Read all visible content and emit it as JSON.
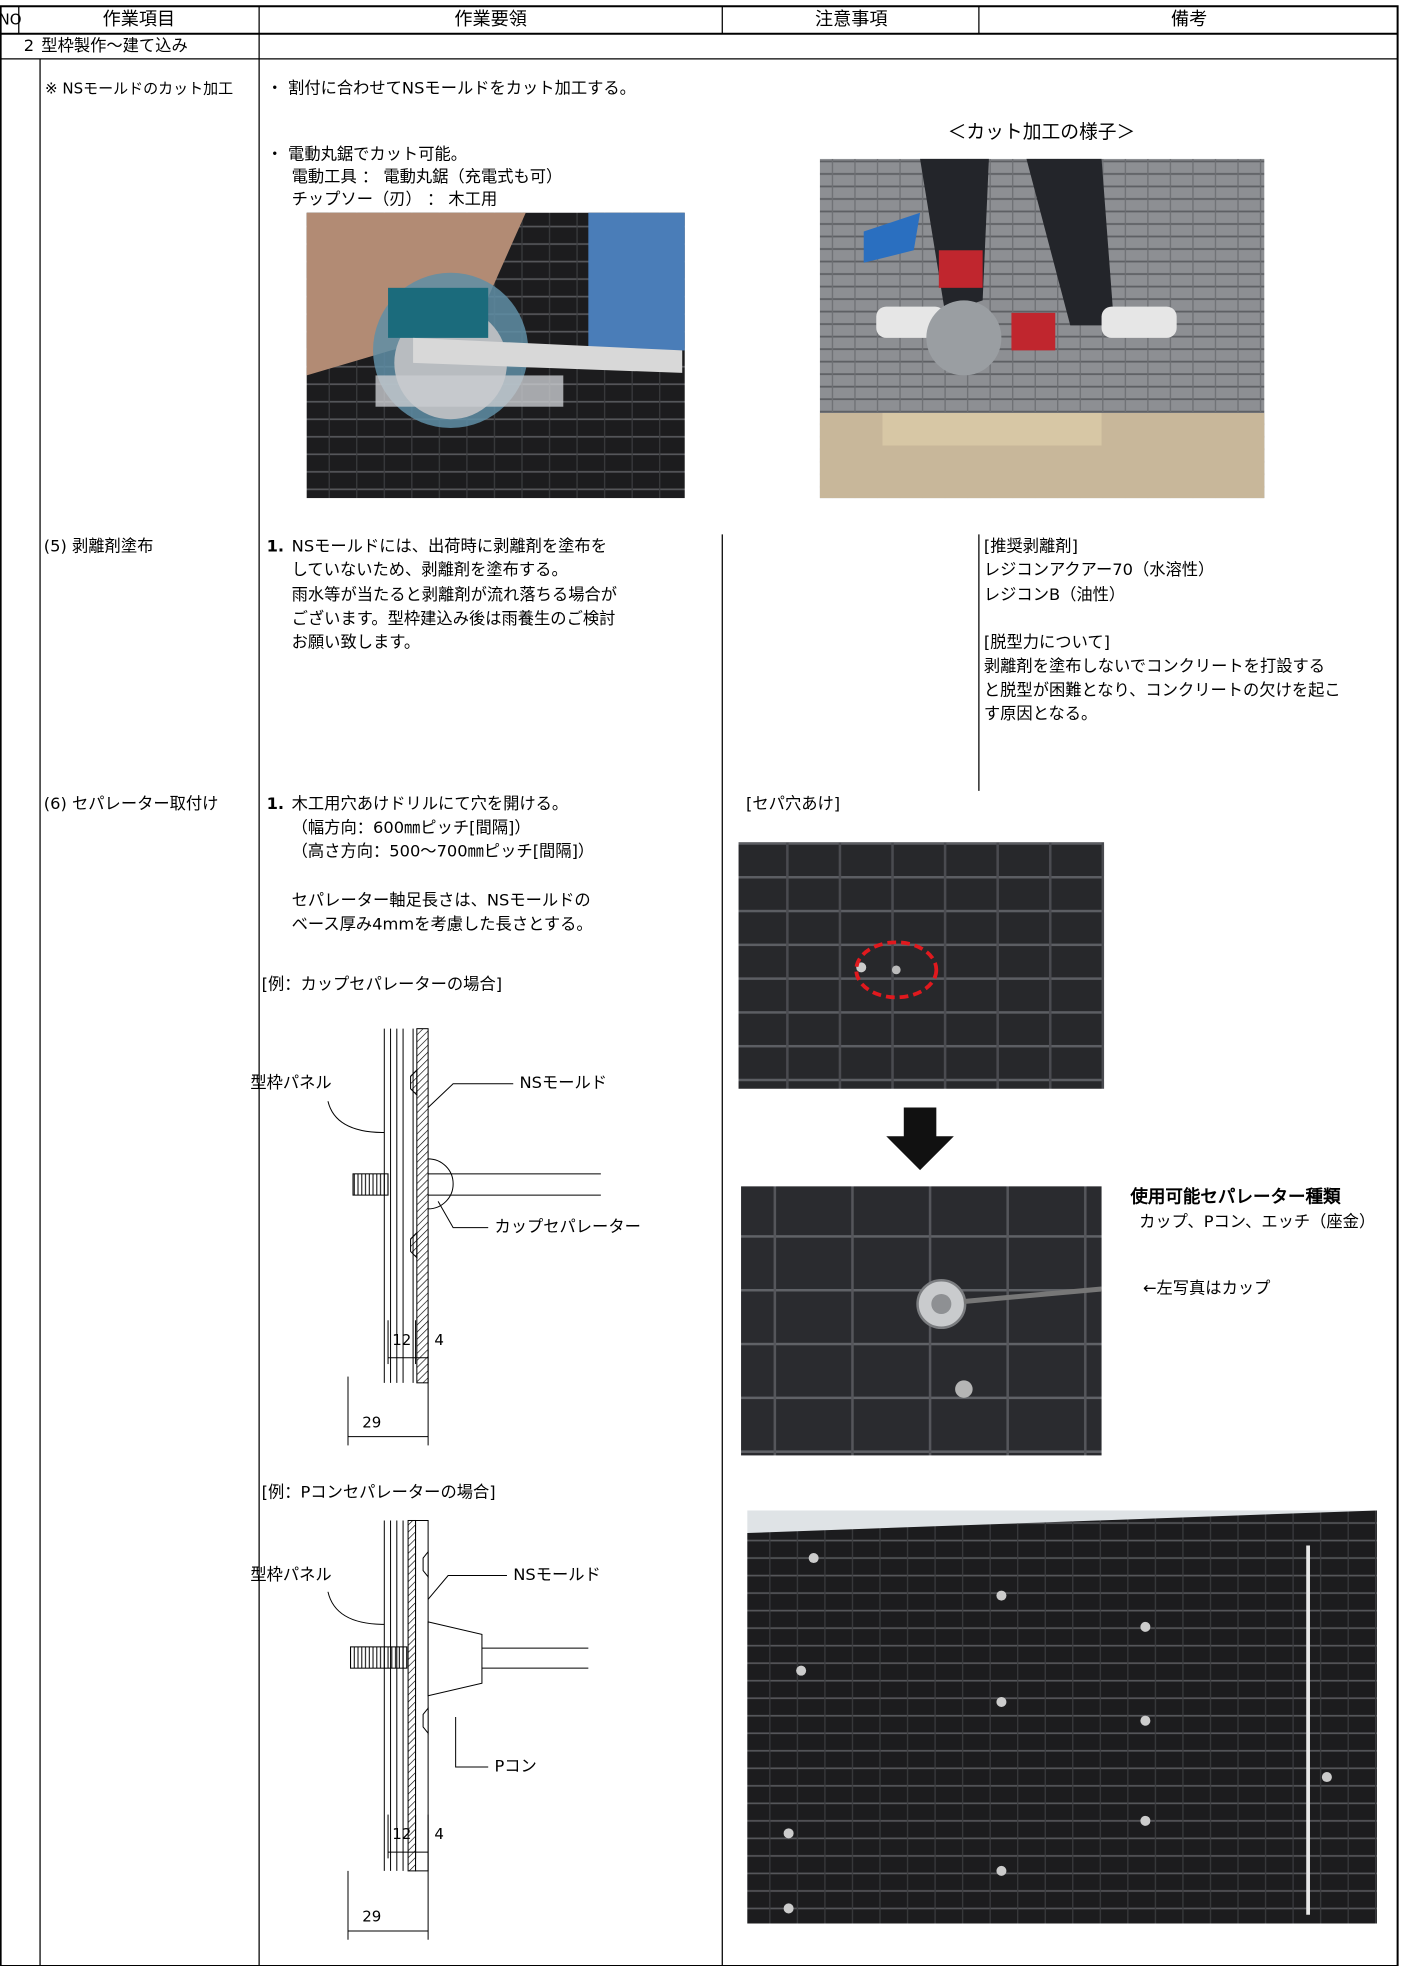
{
  "header": {
    "no": "NO",
    "item": "作業項目",
    "procedure": "作業要領",
    "notes": "注意事項",
    "remarks": "備考"
  },
  "section": {
    "number": "2",
    "title": "型枠製作～建て込み"
  },
  "rows": [
    {
      "item": "※ NSモールドのカット加工",
      "procedure": [
        "・ 割付に合わせてNSモールドをカット加工する。",
        "・ 電動丸鋸でカット可能。",
        "電動工具 ： 電動丸鋸（充電式も可）",
        "チップソー（刃） ： 木工用"
      ],
      "caption": "＜カット加工の様子＞"
    },
    {
      "item": "(5) 剥離剤塗布",
      "step": "1.",
      "procedure": [
        "NSモールドには、出荷時に剥離剤を塗布を",
        "していないため、剥離剤を塗布する。",
        "雨水等が当たると剥離剤が流れ落ちる場合が",
        "ございます。型枠建込み後は雨養生のご検討",
        "お願い致します。"
      ],
      "remarks_1": [
        "[推奨剥離剤]",
        "レジコンアクアー70（水溶性）",
        "レジコンB（油性）"
      ],
      "remarks_2": [
        "[脱型力について]",
        "剥離剤を塗布しないでコンクリートを打設する",
        "と脱型が困難となり、コンクリートの欠けを起こ",
        "す原因となる。"
      ]
    },
    {
      "item": "(6) セパレーター取付け",
      "step": "1.",
      "procedure": [
        "木工用穴あけドリルにて穴を開ける。",
        "（幅方向：600㎜ピッチ[間隔]）",
        "（高さ方向：500～700㎜ピッチ[間隔]）"
      ],
      "procedure_2": [
        "セパレーター軸足長さは、NSモールドの",
        "ベース厚み4mmを考慮した長さとする。"
      ],
      "example_1": {
        "title": "[例：カップセパレーターの場合]",
        "panel": "型枠パネル",
        "mold": "NSモールド",
        "separator": "カップセパレーター",
        "dim_a": "12",
        "dim_b": "4",
        "dim_total": "29"
      },
      "example_2": {
        "title": "[例：Pコンセパレーターの場合]",
        "panel": "型枠パネル",
        "mold": "NSモールド",
        "separator": "Pコン",
        "dim_a": "12",
        "dim_b": "4",
        "dim_total": "29"
      },
      "notes": "[セパ穴あけ]",
      "remarks": [
        "使用可能セパレーター種類",
        "カップ、Pコン、エッチ（座金）",
        "←左写真はカップ"
      ]
    }
  ]
}
